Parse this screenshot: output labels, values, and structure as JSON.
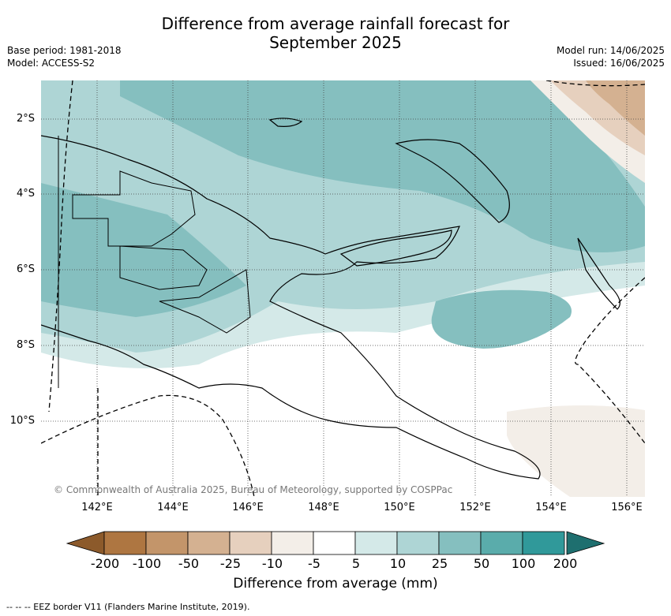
{
  "title_line1": "Difference from average rainfall forecast for",
  "title_line2": "September 2025",
  "meta_left": [
    "Base period: 1981-2018",
    "Model: ACCESS-S2"
  ],
  "meta_right": [
    "Model run: 14/06/2025",
    "Issued: 16/06/2025"
  ],
  "lat_ticks": [
    "2°S",
    "4°S",
    "6°S",
    "8°S",
    "10°S"
  ],
  "lon_ticks": [
    "142°E",
    "144°E",
    "146°E",
    "148°E",
    "150°E",
    "152°E",
    "154°E",
    "156°E"
  ],
  "credit": "© Commonwealth of Australia 2025, Bureau of Meteorology, supported by COSPPac",
  "colorbar": {
    "labels": [
      "-200",
      "-100",
      "-50",
      "-25",
      "-10",
      "-5",
      "5",
      "10",
      "25",
      "50",
      "100",
      "200"
    ],
    "colors": [
      "#8c5a2b",
      "#ae7641",
      "#c3956a",
      "#d4b191",
      "#e6d0be",
      "#f3eee8",
      "#ffffff",
      "#d4e9e8",
      "#aed5d5",
      "#85bfbf",
      "#5aacab",
      "#30999a",
      "#1e6f6f"
    ],
    "title": "Difference from average (mm)"
  },
  "eez_note": "--  --  -- EEZ border V11 (Flanders Marine Institute, 2019)."
}
